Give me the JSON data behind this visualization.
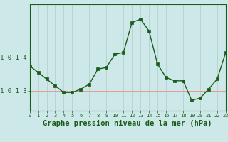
{
  "x": [
    0,
    1,
    2,
    3,
    4,
    5,
    6,
    7,
    8,
    9,
    10,
    11,
    12,
    13,
    14,
    15,
    16,
    17,
    18,
    19,
    20,
    21,
    22,
    23
  ],
  "y": [
    1013.75,
    1013.55,
    1013.35,
    1013.15,
    1012.95,
    1012.95,
    1013.05,
    1013.2,
    1013.65,
    1013.7,
    1014.1,
    1014.15,
    1015.05,
    1015.15,
    1014.8,
    1013.8,
    1013.4,
    1013.3,
    1013.3,
    1012.72,
    1012.78,
    1013.05,
    1013.35,
    1014.15
  ],
  "line_color": "#1a5c1a",
  "marker_color": "#1a5c1a",
  "bg_color": "#cce8e8",
  "grid_v_color": "#b8d0d0",
  "grid_h_color": "#e89898",
  "xlabel": "Graphe pression niveau de la mer (hPa)",
  "xlabel_color": "#1a5c1a",
  "tick_color": "#1a5c1a",
  "spine_color": "#1a5c1a",
  "ytick_labels": [
    "1 0 1 3",
    "1 0 1 4"
  ],
  "ytick_values": [
    1013.0,
    1014.0
  ],
  "ylim": [
    1012.4,
    1015.6
  ],
  "xlim": [
    0,
    23
  ],
  "axis_fontsize": 6.5,
  "xlabel_fontsize": 7.5
}
